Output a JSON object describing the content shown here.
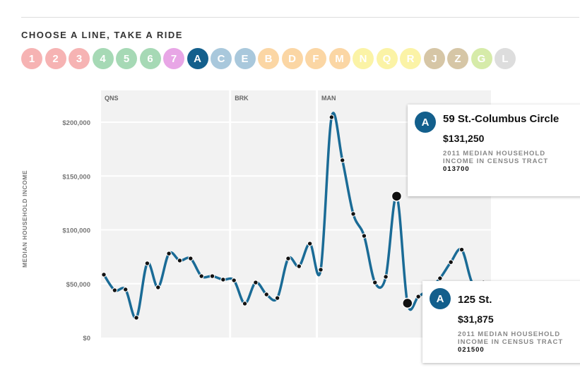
{
  "header": {
    "title": "CHOOSE A LINE, TAKE A RIDE"
  },
  "lines": [
    {
      "label": "1",
      "color": "#f6b3b3"
    },
    {
      "label": "2",
      "color": "#f6b3b3"
    },
    {
      "label": "3",
      "color": "#f6b3b3"
    },
    {
      "label": "4",
      "color": "#a6d9b5"
    },
    {
      "label": "5",
      "color": "#a6d9b5"
    },
    {
      "label": "6",
      "color": "#a6d9b5"
    },
    {
      "label": "7",
      "color": "#e8a6e6"
    },
    {
      "label": "A",
      "color": "#135f8c"
    },
    {
      "label": "C",
      "color": "#a9c8dc"
    },
    {
      "label": "E",
      "color": "#a9c8dc"
    },
    {
      "label": "B",
      "color": "#fbd6a4"
    },
    {
      "label": "D",
      "color": "#fbd6a4"
    },
    {
      "label": "F",
      "color": "#fbd6a4"
    },
    {
      "label": "M",
      "color": "#fbd6a4"
    },
    {
      "label": "N",
      "color": "#fbf3a6"
    },
    {
      "label": "Q",
      "color": "#fbf3a6"
    },
    {
      "label": "R",
      "color": "#fbf3a6"
    },
    {
      "label": "J",
      "color": "#d6c6a6"
    },
    {
      "label": "Z",
      "color": "#d6c6a6"
    },
    {
      "label": "G",
      "color": "#d6eba9"
    },
    {
      "label": "L",
      "color": "#dddddd"
    }
  ],
  "chart_data": {
    "type": "line",
    "ylabel": "MEDIAN HOUSEHOLD INCOME",
    "ylim": [
      0,
      200000
    ],
    "yticks": [
      0,
      50000,
      100000,
      150000,
      200000
    ],
    "ytick_labels": [
      "$0",
      "$50,000",
      "$100,000",
      "$150,000",
      "$200,000"
    ],
    "boroughs": [
      {
        "label": "QNS",
        "from": 0,
        "to": 11
      },
      {
        "label": "BRK",
        "from": 12,
        "to": 19
      },
      {
        "label": "MAN",
        "from": 20,
        "to": 35
      }
    ],
    "series": [
      {
        "name": "A",
        "color": "#1a6b96",
        "values": [
          58400,
          43900,
          44600,
          18400,
          68900,
          46600,
          78000,
          71500,
          73400,
          57000,
          57000,
          53800,
          53100,
          31500,
          51100,
          40000,
          36700,
          73400,
          66200,
          87200,
          63000,
          204600,
          164600,
          114800,
          94400,
          51100,
          56400,
          131250,
          31875,
          38000,
          45000,
          55000,
          70000,
          81600,
          50000,
          51000
        ]
      }
    ],
    "highlights": [
      {
        "index": 27
      },
      {
        "index": 28
      }
    ]
  },
  "tooltips": [
    {
      "badge": "A",
      "name": "59 St.-Columbus Circle",
      "value": "$131,250",
      "desc": "2011 MEDIAN HOUSEHOLD INCOME IN CENSUS TRACT",
      "tract": "013700"
    },
    {
      "badge": "A",
      "name": "125 St.",
      "value": "$31,875",
      "desc": "2011 MEDIAN HOUSEHOLD INCOME IN CENSUS TRACT",
      "tract": "021500"
    }
  ]
}
